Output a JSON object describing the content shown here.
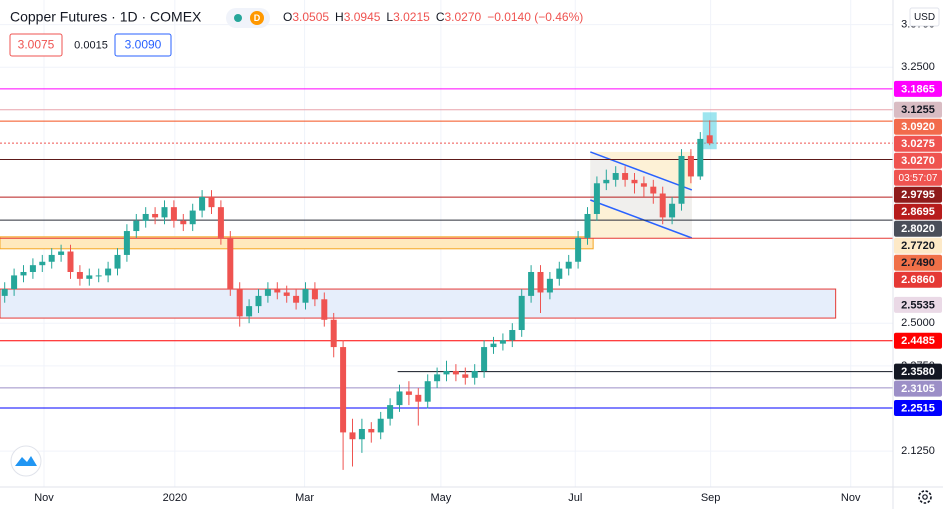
{
  "chart_data": {
    "type": "candlestick",
    "title": "Copper Futures · 1D · COMEX",
    "badge": "D",
    "ohlc": [
      {
        "key": "O",
        "value": "3.0505"
      },
      {
        "key": "H",
        "value": "3.0945"
      },
      {
        "key": "L",
        "value": "3.0215"
      },
      {
        "key": "C",
        "value": "3.0270"
      }
    ],
    "change": "−0.0140 (−0.46%)",
    "bid": "3.0075",
    "spread": "0.0015",
    "ask": "3.0090",
    "currency": "USD",
    "up_color": "#26a69a",
    "down_color": "#ef5350",
    "highlight": "#4dd0e1",
    "open": [
      2.58,
      2.6,
      2.64,
      2.65,
      2.67,
      2.68,
      2.7,
      2.71,
      2.65,
      2.63,
      2.64,
      2.64,
      2.66,
      2.7,
      2.77,
      2.8,
      2.82,
      2.81,
      2.84,
      2.8,
      2.79,
      2.83,
      2.87,
      2.84,
      2.75,
      2.6,
      2.52,
      2.55,
      2.58,
      2.6,
      2.59,
      2.58,
      2.56,
      2.6,
      2.57,
      2.51,
      2.43,
      2.18,
      2.16,
      2.19,
      2.18,
      2.22,
      2.26,
      2.3,
      2.29,
      2.27,
      2.33,
      2.35,
      2.36,
      2.35,
      2.34,
      2.36,
      2.43,
      2.44,
      2.45,
      2.48,
      2.58,
      2.65,
      2.59,
      2.63,
      2.66,
      2.68,
      2.75,
      2.82,
      2.91,
      2.92,
      2.94,
      2.92,
      2.91,
      2.9,
      2.88,
      2.81,
      2.85,
      2.99,
      2.93,
      3.0505
    ],
    "high": [
      2.62,
      2.66,
      2.67,
      2.69,
      2.7,
      2.72,
      2.73,
      2.73,
      2.67,
      2.66,
      2.66,
      2.68,
      2.72,
      2.79,
      2.82,
      2.84,
      2.84,
      2.86,
      2.86,
      2.82,
      2.85,
      2.89,
      2.89,
      2.86,
      2.77,
      2.62,
      2.57,
      2.6,
      2.62,
      2.62,
      2.61,
      2.6,
      2.62,
      2.62,
      2.59,
      2.53,
      2.45,
      2.22,
      2.22,
      2.21,
      2.24,
      2.28,
      2.32,
      2.33,
      2.31,
      2.35,
      2.37,
      2.39,
      2.38,
      2.37,
      2.38,
      2.45,
      2.46,
      2.47,
      2.5,
      2.6,
      2.67,
      2.67,
      2.65,
      2.68,
      2.7,
      2.77,
      2.84,
      2.93,
      2.95,
      2.96,
      2.96,
      2.94,
      2.93,
      2.92,
      2.9,
      2.87,
      3.01,
      3.01,
      3.06,
      3.0945
    ],
    "low": [
      2.56,
      2.58,
      2.62,
      2.63,
      2.65,
      2.66,
      2.68,
      2.63,
      2.61,
      2.61,
      2.62,
      2.62,
      2.64,
      2.68,
      2.75,
      2.78,
      2.79,
      2.79,
      2.78,
      2.77,
      2.77,
      2.81,
      2.82,
      2.73,
      2.58,
      2.49,
      2.5,
      2.53,
      2.56,
      2.57,
      2.56,
      2.54,
      2.54,
      2.55,
      2.49,
      2.4,
      2.07,
      2.08,
      2.12,
      2.15,
      2.16,
      2.2,
      2.24,
      2.26,
      2.2,
      2.25,
      2.31,
      2.33,
      2.33,
      2.32,
      2.32,
      2.34,
      2.41,
      2.42,
      2.43,
      2.46,
      2.56,
      2.53,
      2.57,
      2.61,
      2.64,
      2.66,
      2.73,
      2.8,
      2.89,
      2.9,
      2.9,
      2.88,
      2.87,
      2.85,
      2.79,
      2.79,
      2.83,
      2.91,
      2.92,
      3.0215
    ],
    "close": [
      2.6,
      2.64,
      2.65,
      2.67,
      2.68,
      2.7,
      2.71,
      2.65,
      2.63,
      2.64,
      2.64,
      2.66,
      2.7,
      2.77,
      2.8,
      2.82,
      2.81,
      2.84,
      2.8,
      2.79,
      2.83,
      2.87,
      2.84,
      2.75,
      2.6,
      2.52,
      2.55,
      2.58,
      2.6,
      2.59,
      2.58,
      2.56,
      2.6,
      2.57,
      2.51,
      2.43,
      2.18,
      2.16,
      2.19,
      2.18,
      2.22,
      2.26,
      2.3,
      2.29,
      2.27,
      2.33,
      2.35,
      2.36,
      2.35,
      2.34,
      2.36,
      2.43,
      2.44,
      2.45,
      2.48,
      2.58,
      2.65,
      2.59,
      2.63,
      2.66,
      2.68,
      2.75,
      2.82,
      2.91,
      2.92,
      2.94,
      2.92,
      2.91,
      2.9,
      2.88,
      2.81,
      2.85,
      2.99,
      2.93,
      3.04,
      3.027
    ],
    "xlim": [
      -0.5,
      94.5
    ],
    "xticks": [
      {
        "value": 4.18,
        "label": "Nov"
      },
      {
        "value": 18.1,
        "label": "2020"
      },
      {
        "value": 31.9,
        "label": "Mar"
      },
      {
        "value": 46.4,
        "label": "May"
      },
      {
        "value": 60.7,
        "label": "Jul"
      },
      {
        "value": 75.1,
        "label": "Sep"
      },
      {
        "value": 90.0,
        "label": "Nov"
      }
    ],
    "ylim": [
      2.02,
      3.447
    ],
    "yticks": [
      {
        "value": 3.375,
        "label": "3.3750"
      },
      {
        "value": 3.25,
        "label": "3.2500"
      },
      {
        "value": 2.5,
        "label": "2.5000"
      },
      {
        "value": 2.375,
        "label": "2.3750"
      },
      {
        "value": 2.125,
        "label": "2.1250"
      }
    ],
    "grid": true,
    "zones": [
      {
        "top": 2.753,
        "bottom": 2.718,
        "to": 62.6,
        "fill": "#ffe9bd",
        "stroke": "#f5a623"
      },
      {
        "top": 2.6,
        "bottom": 2.515,
        "to": 88.4,
        "fill": "#e6eefb",
        "stroke": "#e53935"
      }
    ],
    "channel": {
      "x": [
        62.3,
        73.1
      ],
      "upper": [
        3.0018,
        2.8904
      ],
      "lower": [
        2.861,
        2.7496
      ],
      "color": "#2962ff",
      "fill": "#fdf1d6"
    },
    "levels": [
      {
        "value": 3.1865,
        "color": "#ff00ff",
        "label_color": "#ff00ff",
        "text_color": "#ffffff"
      },
      {
        "value": 3.1255,
        "color": "#e8a3ab",
        "label_color": "#d9bcc3",
        "text_color": "#131722"
      },
      {
        "value": {
          "value": 3.092,
          "label": "3.0920"
        },
        "color": "#f4511e",
        "label_color": "#f26b4c",
        "text_color": "#ffffff"
      },
      {
        "value": 3.0275,
        "color": "#ef5350",
        "dashed": true,
        "label_color": "#ef5350",
        "text_color": "#ffffff"
      },
      {
        "value": {
          "value": 3.027,
          "label": "3.0270"
        },
        "line": false,
        "label_color": "#ef5350",
        "text_color": "#ffffff",
        "countdown": "03:57:07"
      },
      {
        "value": 2.9795,
        "color": "#5d1a1a",
        "label_color": "#8e1b1b",
        "text_color": "#ffffff"
      },
      {
        "value": 2.8695,
        "color": "#b71c1c",
        "label_color": "#b71c1c",
        "text_color": "#ffffff"
      },
      {
        "value": {
          "value": 2.802,
          "label": "2.8020"
        },
        "color": "#2a2e39",
        "label_color": "#4a4e59",
        "text_color": "#ffffff"
      },
      {
        "value": {
          "value": 2.772,
          "label": "2.7720"
        },
        "line": false,
        "label_color": "#fde9c7",
        "text_color": "#131722"
      },
      {
        "value": {
          "value": 2.749,
          "label": "2.7490"
        },
        "color": "#e53935",
        "label_color": "#f07048",
        "text_color": "#131722"
      },
      {
        "value": {
          "value": 2.686,
          "label": "2.6860"
        },
        "line": false,
        "label_color": "#e53935",
        "text_color": "#ffffff"
      },
      {
        "value": 2.5535,
        "line": false,
        "label_color": "#ead9e6",
        "text_color": "#131722"
      },
      {
        "value": 2.4485,
        "color": "#ff0000",
        "label_color": "#ff0000",
        "text_color": "#ffffff"
      },
      {
        "value": {
          "value": 2.358,
          "label": "2.3580"
        },
        "color": "#131722",
        "from": 41.8,
        "label_color": "#131722",
        "text_color": "#ffffff"
      },
      {
        "value": 2.3105,
        "color": "#9c8fc7",
        "label_color": "#9c8fc7",
        "text_color": "#ffffff"
      },
      {
        "value": 2.2515,
        "color": "#0000ff",
        "label_color": "#0000ff",
        "text_color": "#ffffff"
      }
    ]
  }
}
